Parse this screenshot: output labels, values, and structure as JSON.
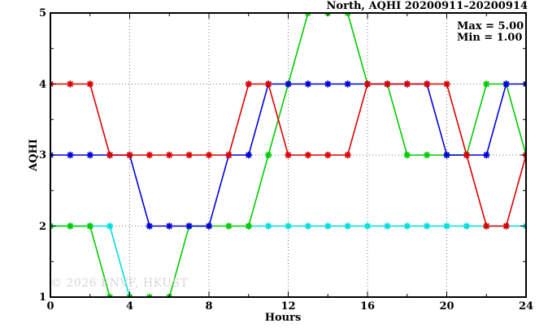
{
  "title": "North, AQHI 20200911–20200914",
  "legend": {
    "max_label": "Max = 5.00",
    "min_label": "Min = 1.00"
  },
  "watermark": "© 2026 ENVF, HKUST",
  "chart_data": {
    "type": "line",
    "title": "North, AQHI 20200911–20200914",
    "xlabel": "Hours",
    "ylabel": "AQHI",
    "xlim": [
      0,
      24
    ],
    "ylim": [
      1,
      5
    ],
    "x_major_ticks": [
      0,
      4,
      8,
      12,
      16,
      20,
      24
    ],
    "x_minor_ticks": [
      2,
      6,
      10,
      14,
      18,
      22
    ],
    "y_major_ticks": [
      1,
      2,
      3,
      4,
      5
    ],
    "y_minor_ticks": [
      1.5,
      2.5,
      3.5,
      4.5
    ],
    "x_gridlines": [
      4,
      8,
      12,
      16,
      20
    ],
    "y_gridlines": [
      2,
      3,
      4
    ],
    "grid": true,
    "grid_style": "dotted",
    "marker": "asterisk",
    "legend_position": "top-right-inside",
    "stats": {
      "max": 5.0,
      "min": 1.0
    },
    "x": [
      0,
      1,
      2,
      3,
      4,
      5,
      6,
      7,
      8,
      9,
      10,
      11,
      12,
      13,
      14,
      15,
      16,
      17,
      18,
      19,
      20,
      21,
      22,
      23,
      24
    ],
    "series": [
      {
        "name": "series-cyan",
        "color": "#00dddd",
        "values": [
          2,
          2,
          2,
          2,
          1,
          null,
          null,
          null,
          null,
          null,
          2,
          2,
          2,
          2,
          2,
          2,
          2,
          2,
          2,
          2,
          2,
          2,
          2,
          2,
          2
        ]
      },
      {
        "name": "series-green",
        "color": "#00cc00",
        "values": [
          2,
          2,
          2,
          1,
          1,
          1,
          1,
          2,
          2,
          2,
          2,
          3,
          4,
          5,
          5,
          5,
          4,
          4,
          3,
          3,
          3,
          3,
          4,
          4,
          3
        ]
      },
      {
        "name": "series-blue",
        "color": "#0000dd",
        "values": [
          3,
          3,
          3,
          3,
          3,
          2,
          2,
          2,
          2,
          3,
          3,
          4,
          4,
          4,
          4,
          4,
          4,
          4,
          4,
          4,
          3,
          3,
          3,
          4,
          4
        ]
      },
      {
        "name": "series-red",
        "color": "#dd0000",
        "values": [
          4,
          4,
          4,
          3,
          3,
          3,
          3,
          3,
          3,
          3,
          4,
          4,
          3,
          3,
          3,
          3,
          4,
          4,
          4,
          4,
          4,
          3,
          2,
          2,
          3
        ]
      }
    ],
    "colors": {
      "border": "#000000",
      "grid": "#777777",
      "background": "#ffffff",
      "watermark": "#d7d7d7"
    }
  }
}
